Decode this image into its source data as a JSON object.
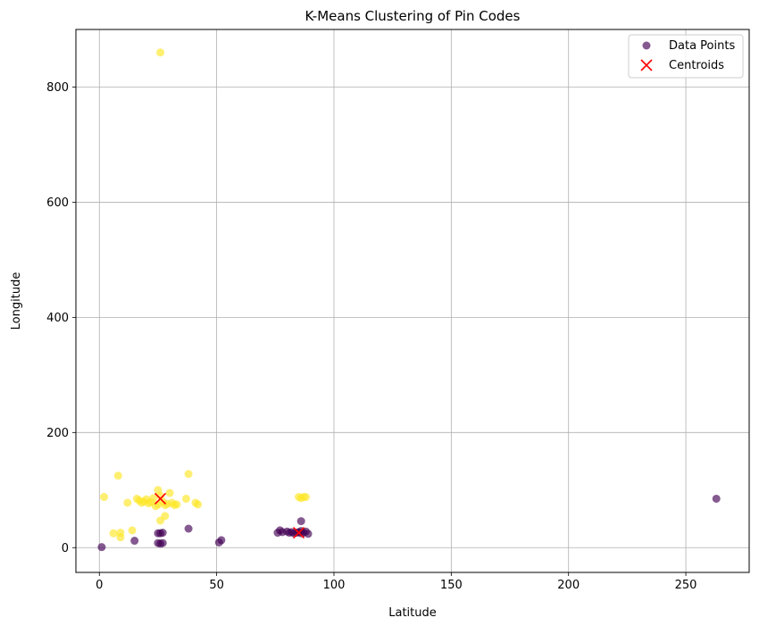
{
  "chart_data": {
    "type": "scatter",
    "title": "K-Means Clustering of Pin Codes",
    "xlabel": "Latitude",
    "ylabel": "Longitude",
    "xlim": [
      -10,
      277
    ],
    "ylim": [
      -43,
      900
    ],
    "xticks": [
      0,
      50,
      100,
      150,
      200,
      250
    ],
    "yticks": [
      0,
      200,
      400,
      600,
      800
    ],
    "grid": true,
    "legend_position": "top-right",
    "legend": [
      {
        "label": "Data Points",
        "marker": "circle",
        "color": "#440154"
      },
      {
        "label": "Centroids",
        "marker": "x",
        "color": "#ff0000"
      }
    ],
    "colors": {
      "cluster_0": "#440154",
      "cluster_1": "#fde725",
      "centroid": "#ff0000"
    },
    "series": [
      {
        "cluster": 0,
        "points": [
          [
            1,
            1
          ],
          [
            15,
            12
          ],
          [
            25,
            25
          ],
          [
            26,
            25
          ],
          [
            27,
            26
          ],
          [
            25,
            8
          ],
          [
            26,
            7
          ],
          [
            27,
            8
          ],
          [
            38,
            33
          ],
          [
            51,
            9
          ],
          [
            52,
            13
          ],
          [
            76,
            26
          ],
          [
            77,
            30
          ],
          [
            78,
            27
          ],
          [
            80,
            28
          ],
          [
            81,
            26
          ],
          [
            82,
            27
          ],
          [
            83,
            25
          ],
          [
            84,
            26
          ],
          [
            85,
            27
          ],
          [
            86,
            25
          ],
          [
            86,
            29
          ],
          [
            87,
            26
          ],
          [
            88,
            28
          ],
          [
            89,
            24
          ],
          [
            86,
            46
          ],
          [
            263,
            85
          ]
        ]
      },
      {
        "cluster": 1,
        "points": [
          [
            2,
            88
          ],
          [
            8,
            125
          ],
          [
            6,
            25
          ],
          [
            9,
            26
          ],
          [
            9,
            18
          ],
          [
            12,
            78
          ],
          [
            14,
            30
          ],
          [
            16,
            85
          ],
          [
            17,
            82
          ],
          [
            18,
            78
          ],
          [
            19,
            80
          ],
          [
            20,
            84
          ],
          [
            21,
            77
          ],
          [
            22,
            79
          ],
          [
            23,
            86
          ],
          [
            24,
            72
          ],
          [
            25,
            75
          ],
          [
            25,
            100
          ],
          [
            26,
            90
          ],
          [
            26,
            47
          ],
          [
            27,
            80
          ],
          [
            28,
            74
          ],
          [
            28,
            55
          ],
          [
            29,
            76
          ],
          [
            30,
            95
          ],
          [
            31,
            78
          ],
          [
            32,
            74
          ],
          [
            33,
            75
          ],
          [
            37,
            85
          ],
          [
            38,
            128
          ],
          [
            41,
            78
          ],
          [
            42,
            75
          ],
          [
            26,
            860
          ],
          [
            85,
            88
          ],
          [
            86,
            86
          ],
          [
            87,
            88
          ],
          [
            88,
            88
          ]
        ]
      }
    ],
    "centroids": [
      [
        26,
        85
      ],
      [
        85,
        26
      ]
    ]
  }
}
